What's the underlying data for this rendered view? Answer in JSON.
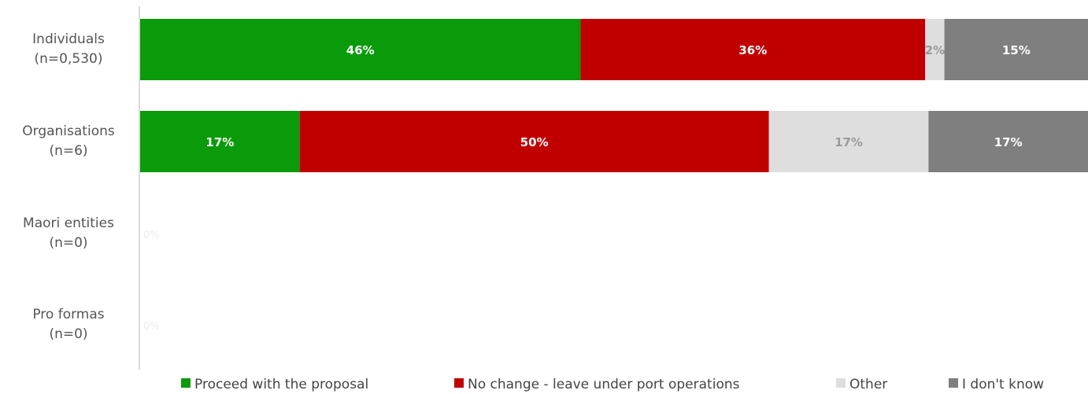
{
  "chart_data": {
    "type": "bar",
    "orientation": "horizontal",
    "stacked": true,
    "normalized": true,
    "categories": [
      [
        "Individuals",
        "(n=0,530)"
      ],
      [
        "Organisations",
        "(n=6)"
      ],
      [
        "Maori entities",
        "(n=0)"
      ],
      [
        "Pro formas",
        "(n=0)"
      ]
    ],
    "series": [
      {
        "name": "Proceed with the proposal",
        "color": "#0a9b0a",
        "label_color": "#ffffff",
        "values": [
          46,
          17,
          null,
          null
        ],
        "labels": [
          "46%",
          "17%",
          "",
          ""
        ]
      },
      {
        "name": "No change - leave under port operations",
        "color": "#c00000",
        "label_color": "#ffffff",
        "values": [
          36,
          50,
          null,
          null
        ],
        "labels": [
          "36%",
          "50%",
          "",
          ""
        ]
      },
      {
        "name": "Other",
        "color": "#dedede",
        "label_color": "#9a9a9a",
        "values": [
          2,
          17,
          null,
          null
        ],
        "labels": [
          "2%",
          "17%",
          "",
          ""
        ]
      },
      {
        "name": "I don't know",
        "color": "#7f7f7f",
        "label_color": "#ffffff",
        "values": [
          15,
          17,
          null,
          null
        ],
        "labels": [
          "15%",
          "17%",
          "",
          ""
        ]
      }
    ],
    "empty_row_labels": [
      "0%",
      "0%"
    ],
    "legend_position": "bottom",
    "grid": false
  }
}
